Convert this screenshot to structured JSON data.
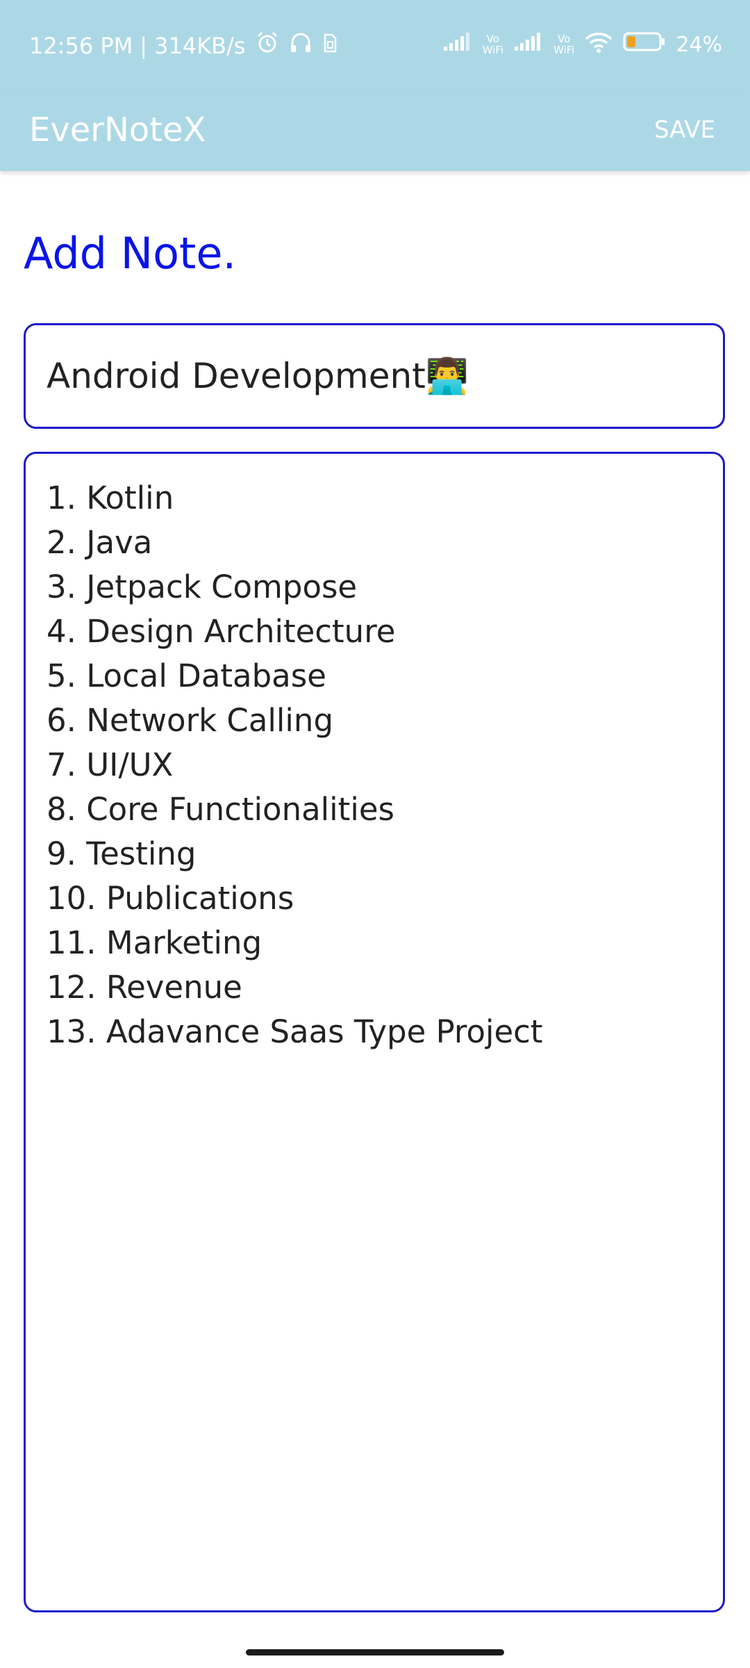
{
  "status_bar": {
    "time": "12:56 PM",
    "separator": "|",
    "net_speed": "314KB/s",
    "vowifi_1_top": "Vo",
    "vowifi_1_bottom": "WiFi",
    "vowifi_2_top": "Vo",
    "vowifi_2_bottom": "WiFi",
    "battery": "24%",
    "icons": [
      "alarm-icon",
      "headphones-icon",
      "sim-icon",
      "signal-icon",
      "wifi-icon",
      "battery-icon"
    ]
  },
  "app_bar": {
    "title": "EverNoteX",
    "save_label": "SAVE",
    "background_color": "#acd8e6"
  },
  "page": {
    "heading": "Add Note.",
    "heading_color": "#0a14e6",
    "border_color": "#1a1acc"
  },
  "note": {
    "title_value": "Android Development👨‍💻",
    "body_lines": [
      "1. Kotlin",
      "2. Java",
      "3. Jetpack Compose",
      "4. Design Architecture",
      "5. Local Database",
      "6. Network Calling",
      "7. UI/UX",
      "8. Core Functionalities",
      "9. Testing",
      "10. Publications",
      "11. Marketing",
      "12. Revenue",
      "13. Adavance Saas Type Project"
    ]
  }
}
